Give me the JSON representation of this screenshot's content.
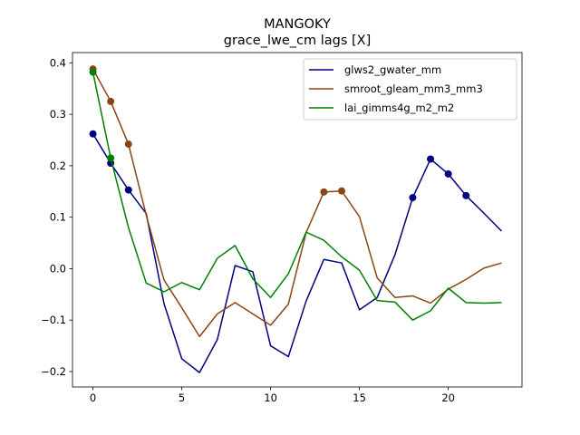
{
  "chart_data": {
    "type": "line",
    "title": "MANGOKY",
    "subtitle": "grace_lwe_cm lags [X]",
    "xlabel": "",
    "ylabel": "",
    "xlim": [
      -1.15,
      24.15
    ],
    "ylim": [
      -0.23,
      0.42
    ],
    "xticks": [
      0,
      5,
      10,
      15,
      20
    ],
    "yticks": [
      -0.2,
      -0.1,
      0.0,
      0.1,
      0.2,
      0.3,
      0.4
    ],
    "ytick_labels": [
      "−0.2",
      "−0.1",
      "0.0",
      "0.1",
      "0.2",
      "0.3",
      "0.4"
    ],
    "grid": false,
    "legend_position": "top-right",
    "x": [
      0,
      1,
      2,
      3,
      4,
      5,
      6,
      7,
      8,
      9,
      10,
      11,
      12,
      13,
      14,
      15,
      16,
      17,
      18,
      19,
      20,
      21,
      22,
      23
    ],
    "series": [
      {
        "name": "glws2_gwater_mm",
        "color": "#000080",
        "values": [
          0.262,
          0.205,
          0.153,
          0.107,
          -0.068,
          -0.175,
          -0.202,
          -0.138,
          0.006,
          -0.006,
          -0.15,
          -0.171,
          -0.063,
          0.018,
          0.011,
          -0.08,
          -0.056,
          0.027,
          0.138,
          0.213,
          0.184,
          0.142,
          0.108,
          0.073
        ],
        "markers": [
          0,
          1,
          2,
          18,
          19,
          20,
          21
        ]
      },
      {
        "name": "smroot_gleam_mm3_mm3",
        "color": "#8B4513",
        "values": [
          0.388,
          0.325,
          0.242,
          0.104,
          -0.022,
          -0.076,
          -0.132,
          -0.088,
          -0.066,
          -0.088,
          -0.11,
          -0.069,
          0.07,
          0.149,
          0.151,
          0.101,
          -0.018,
          -0.056,
          -0.053,
          -0.067,
          -0.04,
          -0.021,
          0.001,
          0.011
        ],
        "markers": [
          0,
          1,
          2,
          13,
          14
        ]
      },
      {
        "name": "lai_gimms4g_m2_m2",
        "color": "#008000",
        "values": [
          0.382,
          0.215,
          0.08,
          -0.028,
          -0.045,
          -0.027,
          -0.041,
          0.02,
          0.045,
          -0.02,
          -0.056,
          -0.01,
          0.071,
          0.055,
          0.023,
          -0.003,
          -0.062,
          -0.065,
          -0.1,
          -0.082,
          -0.038,
          -0.066,
          -0.067,
          -0.066
        ],
        "markers": [
          0,
          1
        ]
      }
    ]
  }
}
